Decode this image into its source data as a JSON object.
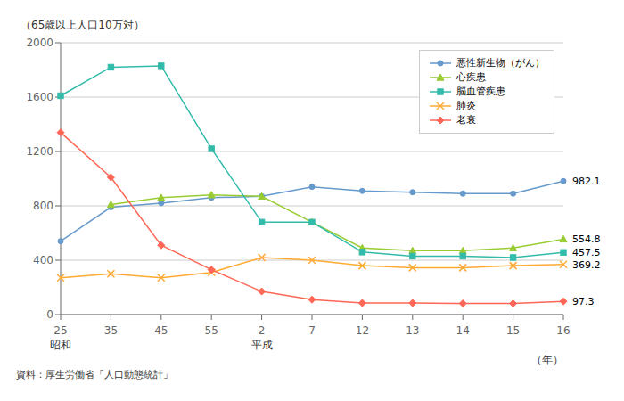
{
  "chart_data": {
    "type": "line",
    "x_label": "（年）",
    "y_label": "（65歳以上人口10万対）",
    "source": "資料：厚生労働省「人口動態統計」",
    "categories": [
      "25",
      "35",
      "45",
      "55",
      "2",
      "7",
      "12",
      "13",
      "14",
      "15",
      "16"
    ],
    "series": [
      {
        "name": "悪性新生物（がん）",
        "color": "#6699CC",
        "marker": "circle",
        "values": [
          540,
          790,
          820,
          860,
          870,
          940,
          910,
          900,
          890,
          890,
          982.1
        ]
      },
      {
        "name": "心疾患",
        "color": "#99CC33",
        "marker": "triangle",
        "values": [
          null,
          810,
          860,
          880,
          870,
          680,
          490,
          470,
          470,
          490,
          554.8
        ]
      },
      {
        "name": "脳血管疾患",
        "color": "#33BBAA",
        "marker": "square",
        "values": [
          1610,
          1820,
          1830,
          1220,
          680,
          680,
          460,
          430,
          430,
          420,
          457.5
        ]
      },
      {
        "name": "肺炎",
        "color": "#FFAA33",
        "marker": "x",
        "values": [
          270,
          300,
          270,
          310,
          420,
          400,
          360,
          345,
          345,
          360,
          369.2
        ]
      },
      {
        "name": "老衰",
        "color": "#FF6655",
        "marker": "diamond",
        "values": [
          1340,
          1010,
          510,
          330,
          170,
          110,
          85,
          85,
          82,
          82,
          97.3
        ]
      }
    ],
    "annotations": [
      {
        "text": "982.1",
        "x": "16",
        "y": 982.1
      },
      {
        "text": "554.8",
        "x": "16",
        "y": 554.8
      },
      {
        "text": "457.5",
        "x": "16",
        "y": 457.5
      },
      {
        "text": "369.2",
        "x": "16",
        "y": 369.2
      },
      {
        "text": "97.3",
        "x": "16",
        "y": 97.3
      }
    ],
    "axis_annotations": [
      {
        "text": "昭和",
        "x": "25"
      },
      {
        "text": "平成",
        "x": "2"
      }
    ],
    "ylim": [
      0,
      2000
    ],
    "yticks": [
      0,
      400,
      800,
      1200,
      1600,
      2000
    ],
    "grid": true,
    "legend": "upper right"
  }
}
